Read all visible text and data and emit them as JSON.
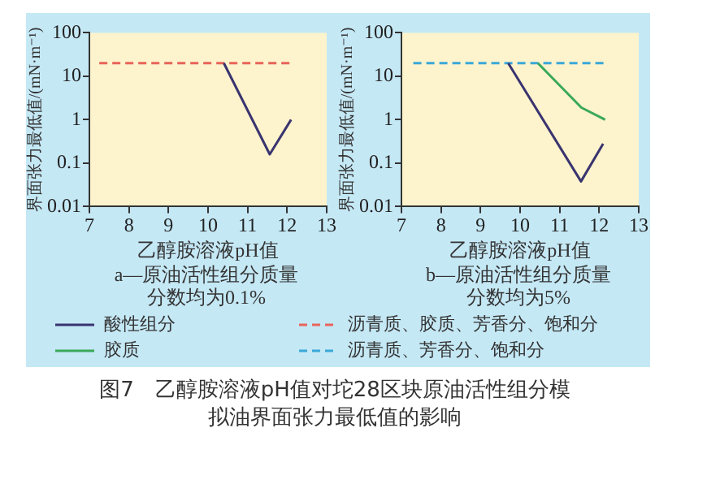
{
  "chart_data": [
    {
      "type": "line",
      "title": "a—原油活性组分质量分数均为0.1%",
      "xlabel": "乙醇胺溶液pH值",
      "ylabel": "界面张力最低值/(mN·m⁻¹)",
      "xlim": [
        7,
        13
      ],
      "xticks": [
        7,
        8,
        9,
        10,
        11,
        12,
        13
      ],
      "ylim": [
        0.01,
        100
      ],
      "yticks": [
        0.01,
        0.1,
        1,
        10,
        100
      ],
      "log": "y",
      "legend": "bottom",
      "annotations": [
        "图7　乙醇胺溶液pH值对坨28区块原油活性组分模拟油界面张力最低值的影响"
      ],
      "series": [
        {
          "name": "酸性组分",
          "color": "#3a3470",
          "x": [
            10.4,
            11.56,
            12.1
          ],
          "values": [
            20,
            0.16,
            1.0
          ]
        },
        {
          "name": "沥青质、胶质、芳香分、饱和分",
          "color": "#e8645a",
          "line_style": "dashed",
          "x": [
            7.25,
            12.15
          ],
          "values": [
            20,
            20
          ]
        }
      ]
    },
    {
      "type": "line",
      "title": "b—原油活性组分质量分数均为5%",
      "xlabel": "乙醇胺溶液pH值",
      "ylabel": "界面张力最低值/(mN·m⁻¹)",
      "xlim": [
        7,
        13
      ],
      "xticks": [
        7,
        8,
        9,
        10,
        11,
        12,
        13
      ],
      "ylim": [
        0.01,
        100
      ],
      "yticks": [
        0.01,
        0.1,
        1,
        10,
        100
      ],
      "log": "y",
      "legend": "bottom",
      "series": [
        {
          "name": "酸性组分",
          "color": "#3a3470",
          "x": [
            9.7,
            11.54,
            12.1
          ],
          "values": [
            20,
            0.038,
            0.28
          ]
        },
        {
          "name": "胶质",
          "color": "#3aa85a",
          "x": [
            10.45,
            11.55,
            12.15
          ],
          "values": [
            20,
            1.9,
            1.0
          ]
        },
        {
          "name": "沥青质、芳香分、饱和分",
          "color": "#3aa8d8",
          "line_style": "dashed",
          "x": [
            7.3,
            12.2
          ],
          "values": [
            20,
            20
          ]
        }
      ]
    }
  ]
}
